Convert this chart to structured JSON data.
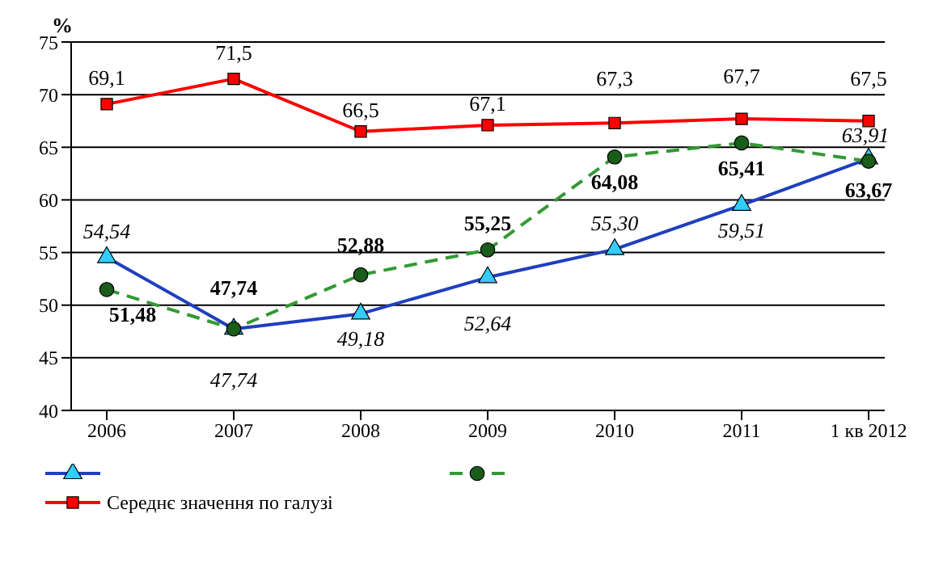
{
  "chart_data": {
    "type": "line",
    "ylabel": "%",
    "categories": [
      "2006",
      "2007",
      "2008",
      "2009",
      "2010",
      "2011",
      "1 кв 2012"
    ],
    "series": [
      {
        "color": "#1f3fbf",
        "marker": "triangle",
        "line_style": "solid",
        "values": [
          54.54,
          47.74,
          49.18,
          52.64,
          55.3,
          59.51,
          63.91
        ],
        "value_labels": [
          "54,54",
          "47,74",
          "49,18",
          "52,64",
          "55,30",
          "59,51",
          "63,91"
        ]
      },
      {
        "color": "#339933",
        "marker": "circle",
        "line_style": "dashed",
        "values": [
          51.48,
          47.74,
          52.88,
          55.25,
          64.08,
          65.41,
          63.67
        ],
        "value_labels": [
          "51,48",
          "47,74",
          "52,88",
          "55,25",
          "64,08",
          "65,41",
          "63,67"
        ]
      },
      {
        "name": "Середнє значення по галузі",
        "color": "#ff0000",
        "marker": "square",
        "line_style": "solid",
        "values": [
          69.1,
          71.5,
          66.5,
          67.1,
          67.3,
          67.7,
          67.5
        ],
        "value_labels": [
          "69,1",
          "71,5",
          "66,5",
          "67,1",
          "67,3",
          "67,7",
          "67,5"
        ]
      }
    ],
    "ylim": [
      40,
      75
    ],
    "yticks": [
      40,
      45,
      50,
      55,
      60,
      65,
      70,
      75
    ],
    "grid": "y",
    "legend": "bottom"
  }
}
